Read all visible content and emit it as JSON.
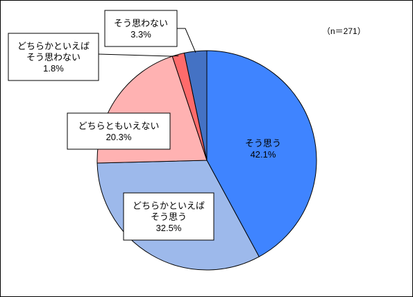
{
  "chart_data": {
    "type": "pie",
    "note": "（n＝271）",
    "slices": [
      {
        "label": [
          "そう思う"
        ],
        "value": 42.1,
        "value_text": "42.1%",
        "color": "#3F84FF"
      },
      {
        "label": [
          "どちらかといえば",
          "そう思う"
        ],
        "value": 32.5,
        "value_text": "32.5%",
        "color": "#9DB9EB"
      },
      {
        "label": [
          "どちらともいえない"
        ],
        "value": 20.3,
        "value_text": "20.3%",
        "color": "#FFB2B2"
      },
      {
        "label": [
          "どちらかといえば",
          "そう思わない"
        ],
        "value": 1.8,
        "value_text": "1.8%",
        "color": "#FF6B6B"
      },
      {
        "label": [
          "そう思わない"
        ],
        "value": 3.3,
        "value_text": "3.3%",
        "color": "#4472C4"
      }
    ]
  }
}
